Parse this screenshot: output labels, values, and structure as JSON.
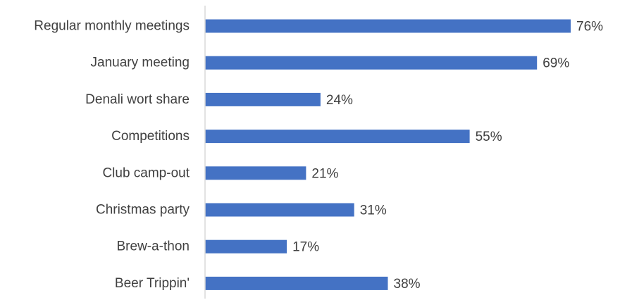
{
  "chart_data": {
    "type": "bar",
    "orientation": "horizontal",
    "categories": [
      "Regular monthly meetings",
      "January meeting",
      "Denali wort share",
      "Competitions",
      "Club camp-out",
      "Christmas party",
      "Brew-a-thon",
      "Beer Trippin'"
    ],
    "values": [
      76,
      69,
      24,
      55,
      21,
      31,
      17,
      38
    ],
    "value_labels": [
      "76%",
      "69%",
      "24%",
      "55%",
      "21%",
      "31%",
      "17%",
      "38%"
    ],
    "value_unit": "%",
    "xlim": [
      0,
      100
    ],
    "grid": false,
    "legend": "none",
    "bar_color": "#4472C4",
    "axis_color": "#D9D9D9",
    "text_color": "#404040"
  }
}
